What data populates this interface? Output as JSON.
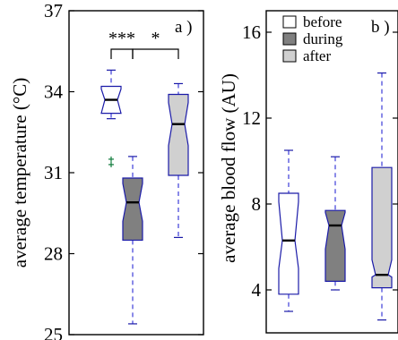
{
  "chart_data": [
    {
      "type": "box",
      "panel_label": "a )",
      "ylabel": "average temperature (°C)",
      "ylim": [
        25,
        37
      ],
      "yticks": [
        25,
        28,
        31,
        34,
        37
      ],
      "ytick_labels": [
        "25",
        "28",
        "31",
        "34",
        "37"
      ],
      "significance": [
        {
          "between": [
            "before",
            "during"
          ],
          "label": "***"
        },
        {
          "between": [
            "during",
            "after"
          ],
          "label": "*"
        }
      ],
      "boxes": [
        {
          "name": "before",
          "fill": "#ffffff",
          "whisker_low": 33.0,
          "q1": 33.2,
          "median": 33.7,
          "q3": 34.2,
          "whisker_high": 34.8,
          "notch": [
            33.2,
            34.1
          ],
          "outliers": [
            31.3,
            31.5
          ]
        },
        {
          "name": "during",
          "fill": "#808080",
          "whisker_low": 25.4,
          "q1": 28.5,
          "median": 29.9,
          "q3": 30.8,
          "whisker_high": 31.6,
          "notch": [
            29.2,
            30.6
          ],
          "outliers": []
        },
        {
          "name": "after",
          "fill": "#d0d0d0",
          "whisker_low": 28.6,
          "q1": 30.9,
          "median": 32.8,
          "q3": 33.9,
          "whisker_high": 34.3,
          "notch": [
            32.0,
            33.6
          ],
          "outliers": []
        }
      ]
    },
    {
      "type": "box",
      "panel_label": "b )",
      "ylabel": "average blood flow (AU)",
      "ylim": [
        2,
        17
      ],
      "yticks": [
        4,
        8,
        12,
        16
      ],
      "ytick_labels": [
        "4",
        "8",
        "12",
        "16"
      ],
      "legend": {
        "position": "top-left",
        "entries": [
          {
            "label": "before",
            "fill": "#ffffff"
          },
          {
            "label": "during",
            "fill": "#808080"
          },
          {
            "label": "after",
            "fill": "#d0d0d0"
          }
        ]
      },
      "boxes": [
        {
          "name": "before",
          "fill": "#ffffff",
          "whisker_low": 3.0,
          "q1": 3.8,
          "median": 6.3,
          "q3": 8.5,
          "whisker_high": 10.5,
          "notch": [
            5.0,
            8.1
          ],
          "outliers": []
        },
        {
          "name": "during",
          "fill": "#808080",
          "whisker_low": 4.0,
          "q1": 4.4,
          "median": 7.0,
          "q3": 7.7,
          "whisker_high": 10.2,
          "notch": [
            5.9,
            7.6
          ],
          "outliers": []
        },
        {
          "name": "after",
          "fill": "#d0d0d0",
          "whisker_low": 2.6,
          "q1": 4.1,
          "median": 4.7,
          "q3": 9.7,
          "whisker_high": 14.1,
          "notch": [
            4.6,
            5.4
          ],
          "outliers": []
        }
      ]
    }
  ],
  "colors": {
    "box_stroke": "#1a1aa8",
    "whisker": "#2b2bd6",
    "outlier": "#0e7a3a",
    "median": "#000000"
  }
}
